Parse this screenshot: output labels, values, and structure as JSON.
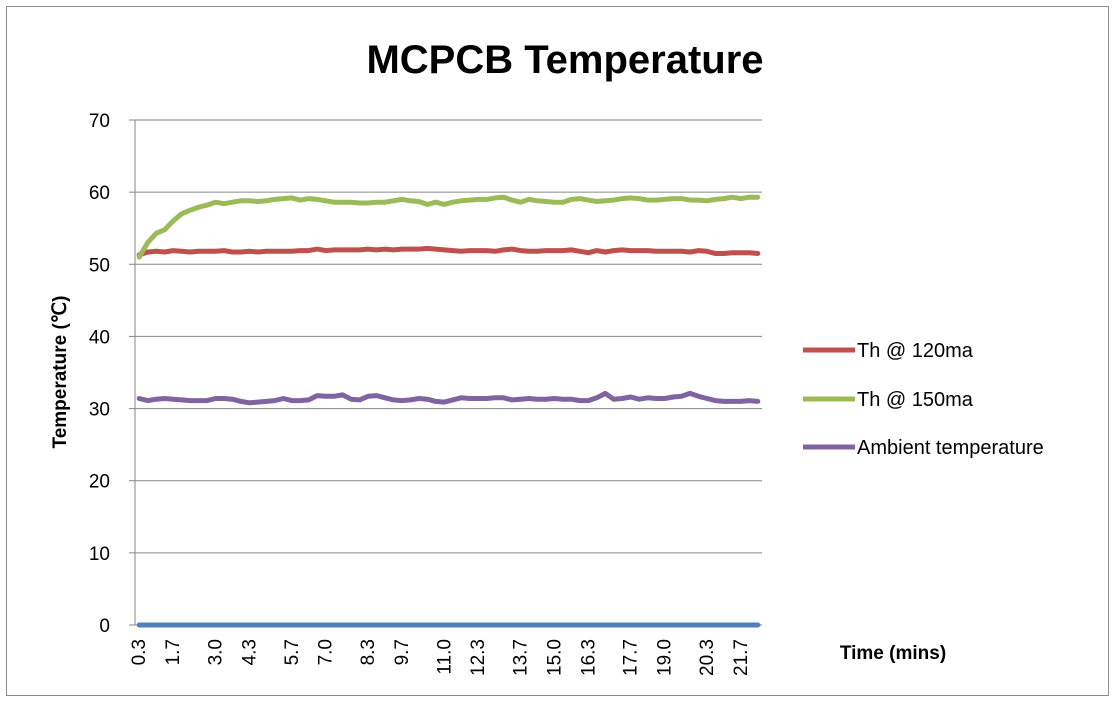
{
  "chart_data": {
    "type": "line",
    "title": "MCPCB Temperature",
    "xlabel": "Time (mins)",
    "ylabel": "Temperature (℃)",
    "ylim": [
      0,
      70
    ],
    "yticks": [
      0,
      10,
      20,
      30,
      40,
      50,
      60,
      70
    ],
    "x_tick_labels": [
      "0.3",
      "1.7",
      "3.0",
      "4.3",
      "5.7",
      "7.0",
      "8.3",
      "9.7",
      "11.0",
      "12.3",
      "13.7",
      "15.0",
      "16.3",
      "17.7",
      "19.0",
      "20.3",
      "21.7"
    ],
    "grid": "horizontal",
    "legend_position": "right",
    "x": [
      0.3,
      0.6,
      0.9,
      1.2,
      1.5,
      1.8,
      2.1,
      2.4,
      2.7,
      3.0,
      3.3,
      3.6,
      3.9,
      4.2,
      4.5,
      4.8,
      5.1,
      5.4,
      5.7,
      6.0,
      6.3,
      6.6,
      6.9,
      7.2,
      7.5,
      7.8,
      8.1,
      8.4,
      8.7,
      9.0,
      9.3,
      9.6,
      9.9,
      10.2,
      10.5,
      10.8,
      11.1,
      11.4,
      11.7,
      12.0,
      12.3,
      12.6,
      12.9,
      13.2,
      13.5,
      13.8,
      14.1,
      14.4,
      14.7,
      15.0,
      15.3,
      15.6,
      15.9,
      16.2,
      16.5,
      16.8,
      17.1,
      17.4,
      17.7,
      18.0,
      18.3,
      18.6,
      18.9,
      19.2,
      19.5,
      19.8,
      20.1,
      20.4,
      20.7,
      21.0,
      21.3,
      21.6,
      21.9,
      22.2
    ],
    "series": [
      {
        "name": "Th @ 120ma",
        "color": "#c0504d",
        "values": [
          51.3,
          51.7,
          51.8,
          51.7,
          51.9,
          51.8,
          51.7,
          51.8,
          51.8,
          51.8,
          51.9,
          51.7,
          51.7,
          51.8,
          51.7,
          51.8,
          51.8,
          51.8,
          51.8,
          51.9,
          51.9,
          52.1,
          51.9,
          52.0,
          52.0,
          52.0,
          52.0,
          52.1,
          52.0,
          52.1,
          52.0,
          52.1,
          52.1,
          52.1,
          52.2,
          52.1,
          52.0,
          51.9,
          51.8,
          51.9,
          51.9,
          51.9,
          51.8,
          52.0,
          52.1,
          51.9,
          51.8,
          51.8,
          51.9,
          51.9,
          51.9,
          52.0,
          51.8,
          51.6,
          51.9,
          51.7,
          51.9,
          52.0,
          51.9,
          51.9,
          51.9,
          51.8,
          51.8,
          51.8,
          51.8,
          51.7,
          51.9,
          51.8,
          51.5,
          51.5,
          51.6,
          51.6,
          51.6,
          51.5
        ]
      },
      {
        "name": "Th @ 150ma",
        "color": "#9bbb59",
        "values": [
          51.0,
          53.0,
          54.3,
          54.8,
          56.0,
          57.0,
          57.5,
          57.9,
          58.2,
          58.6,
          58.4,
          58.6,
          58.8,
          58.8,
          58.7,
          58.8,
          59.0,
          59.1,
          59.2,
          58.9,
          59.1,
          59.0,
          58.8,
          58.6,
          58.6,
          58.6,
          58.5,
          58.5,
          58.6,
          58.6,
          58.8,
          59.0,
          58.8,
          58.7,
          58.3,
          58.6,
          58.3,
          58.6,
          58.8,
          58.9,
          59.0,
          59.0,
          59.2,
          59.3,
          58.9,
          58.6,
          59.0,
          58.8,
          58.7,
          58.6,
          58.6,
          59.0,
          59.1,
          58.9,
          58.7,
          58.8,
          58.9,
          59.1,
          59.2,
          59.1,
          58.9,
          58.9,
          59.0,
          59.1,
          59.1,
          58.9,
          58.9,
          58.8,
          59.0,
          59.1,
          59.3,
          59.1,
          59.3,
          59.3
        ]
      },
      {
        "name": "Ambient temperature",
        "color": "#8064a2",
        "values": [
          31.4,
          31.1,
          31.3,
          31.4,
          31.3,
          31.2,
          31.1,
          31.1,
          31.1,
          31.4,
          31.4,
          31.3,
          31.0,
          30.8,
          30.9,
          31.0,
          31.1,
          31.4,
          31.1,
          31.1,
          31.2,
          31.8,
          31.7,
          31.7,
          31.9,
          31.3,
          31.2,
          31.7,
          31.8,
          31.5,
          31.2,
          31.1,
          31.2,
          31.4,
          31.3,
          31.0,
          30.9,
          31.2,
          31.5,
          31.4,
          31.4,
          31.4,
          31.5,
          31.5,
          31.2,
          31.3,
          31.4,
          31.3,
          31.3,
          31.4,
          31.3,
          31.3,
          31.1,
          31.1,
          31.5,
          32.1,
          31.3,
          31.4,
          31.6,
          31.3,
          31.5,
          31.4,
          31.4,
          31.6,
          31.7,
          32.1,
          31.7,
          31.4,
          31.1,
          31.0,
          31.0,
          31.0,
          31.1,
          31.0
        ]
      },
      {
        "name": "",
        "color": "#4f81bd",
        "values": [
          0,
          0,
          0,
          0,
          0,
          0,
          0,
          0,
          0,
          0,
          0,
          0,
          0,
          0,
          0,
          0,
          0,
          0,
          0,
          0,
          0,
          0,
          0,
          0,
          0,
          0,
          0,
          0,
          0,
          0,
          0,
          0,
          0,
          0,
          0,
          0,
          0,
          0,
          0,
          0,
          0,
          0,
          0,
          0,
          0,
          0,
          0,
          0,
          0,
          0,
          0,
          0,
          0,
          0,
          0,
          0,
          0,
          0,
          0,
          0,
          0,
          0,
          0,
          0,
          0,
          0,
          0,
          0,
          0,
          0,
          0,
          0,
          0,
          0
        ]
      }
    ],
    "legend": [
      "Th @ 120ma",
      "Th @ 150ma",
      "Ambient temperature"
    ]
  }
}
